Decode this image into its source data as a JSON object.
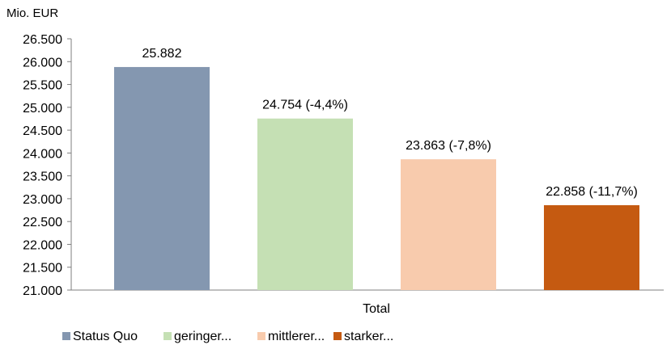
{
  "chart_data": {
    "type": "bar",
    "ylabel": "Mio. EUR",
    "xlabel": "Total",
    "categories": [
      "Total"
    ],
    "ylim": [
      21000,
      26500
    ],
    "ytick_step": 500,
    "ytick_labels": [
      "21.000",
      "21.500",
      "22.000",
      "22.500",
      "23.000",
      "23.500",
      "24.000",
      "24.500",
      "25.000",
      "25.500",
      "26.000",
      "26.500"
    ],
    "grid": false,
    "legend_position": "bottom-left",
    "series": [
      {
        "name": "Status Quo",
        "values": [
          25882
        ],
        "label": "25.882",
        "color": "#8497b0"
      },
      {
        "name": "geringer...",
        "values": [
          24754
        ],
        "label": "24.754 (-4,4%)",
        "color": "#c5e0b4"
      },
      {
        "name": "mittlerer...",
        "values": [
          23863
        ],
        "label": "23.863 (-7,8%)",
        "color": "#f8cbad"
      },
      {
        "name": "starker...",
        "values": [
          22858
        ],
        "label": "22.858 (-11,7%)",
        "color": "#c55a11"
      }
    ]
  }
}
